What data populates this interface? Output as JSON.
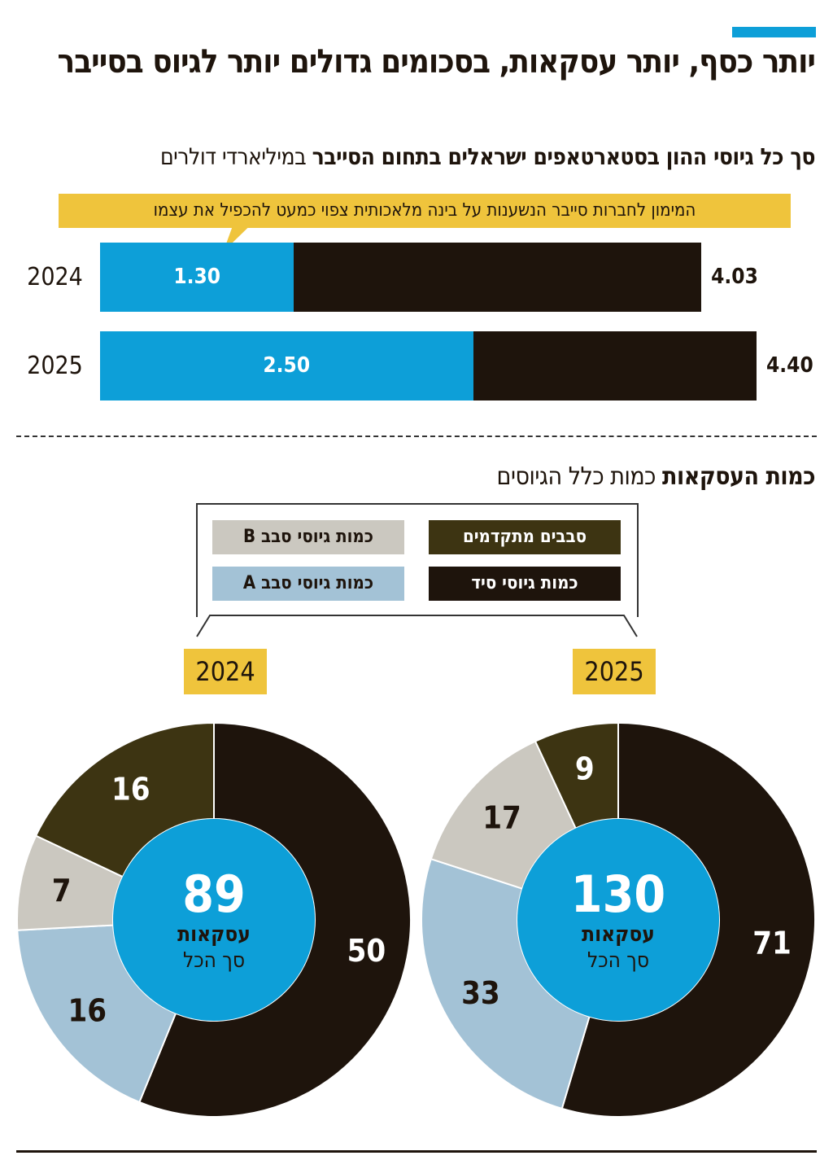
{
  "header": {
    "title": "יותר כסף, יותר עסקאות, בסכומים גדולים יותר לגיוס בסייבר",
    "subtitle_bold": "סך כל גיוסי ההון בסטארטאפים ישראלים בתחום הסייבר",
    "subtitle_regular": "במיליארדי דולרים",
    "accent_color": "#0d9fd8"
  },
  "chart_data": [
    {
      "type": "bar",
      "subtype": "stacked-horizontal",
      "annotation": "המימון לחברות סייבר הנשענות על בינה מלאכותית צפוי כמעט להכפיל את עצמו",
      "categories": [
        "2024",
        "2025"
      ],
      "series": [
        {
          "values": [
            1.3,
            2.5
          ],
          "color": "#0d9fd8"
        },
        {
          "values": [
            4.03,
            4.4
          ],
          "color": "#1e140c",
          "role": "total"
        }
      ],
      "value_labels": {
        "ai": [
          "1.30",
          "2.50"
        ],
        "total": [
          "4.03",
          "4.40"
        ]
      },
      "xlim": [
        0,
        4.4
      ]
    },
    {
      "type": "pie",
      "subtype": "donut",
      "title_bold": "כמות העסקאות",
      "title_regular": "כמות כלל הגיוסים",
      "legend": [
        {
          "label": "סבבים מתקדמים",
          "color": "#3d3412"
        },
        {
          "label": "כמות גיוסי סבב B",
          "color": "#cbc8c0"
        },
        {
          "label": "כמות גיוסי סיד",
          "color": "#1e140c"
        },
        {
          "label": "כמות גיוסי סבב A",
          "color": "#a3c2d6"
        }
      ],
      "categories": [
        "כמות גיוסי סיד",
        "כמות גיוסי סבב A",
        "כמות גיוסי סבב B",
        "סבבים מתקדמים"
      ],
      "charts": [
        {
          "year": "2024",
          "values": [
            50,
            16,
            7,
            16
          ],
          "total": "89",
          "center_line1": "עסקאות",
          "center_line2": "סך הכל"
        },
        {
          "year": "2025",
          "values": [
            71,
            33,
            17,
            9
          ],
          "total": "130",
          "center_line1": "עסקאות",
          "center_line2": "סך הכל"
        }
      ],
      "colors": [
        "#1e140c",
        "#a3c2d6",
        "#cbc8c0",
        "#3d3412"
      ],
      "center_color": "#0d9fd8"
    }
  ]
}
